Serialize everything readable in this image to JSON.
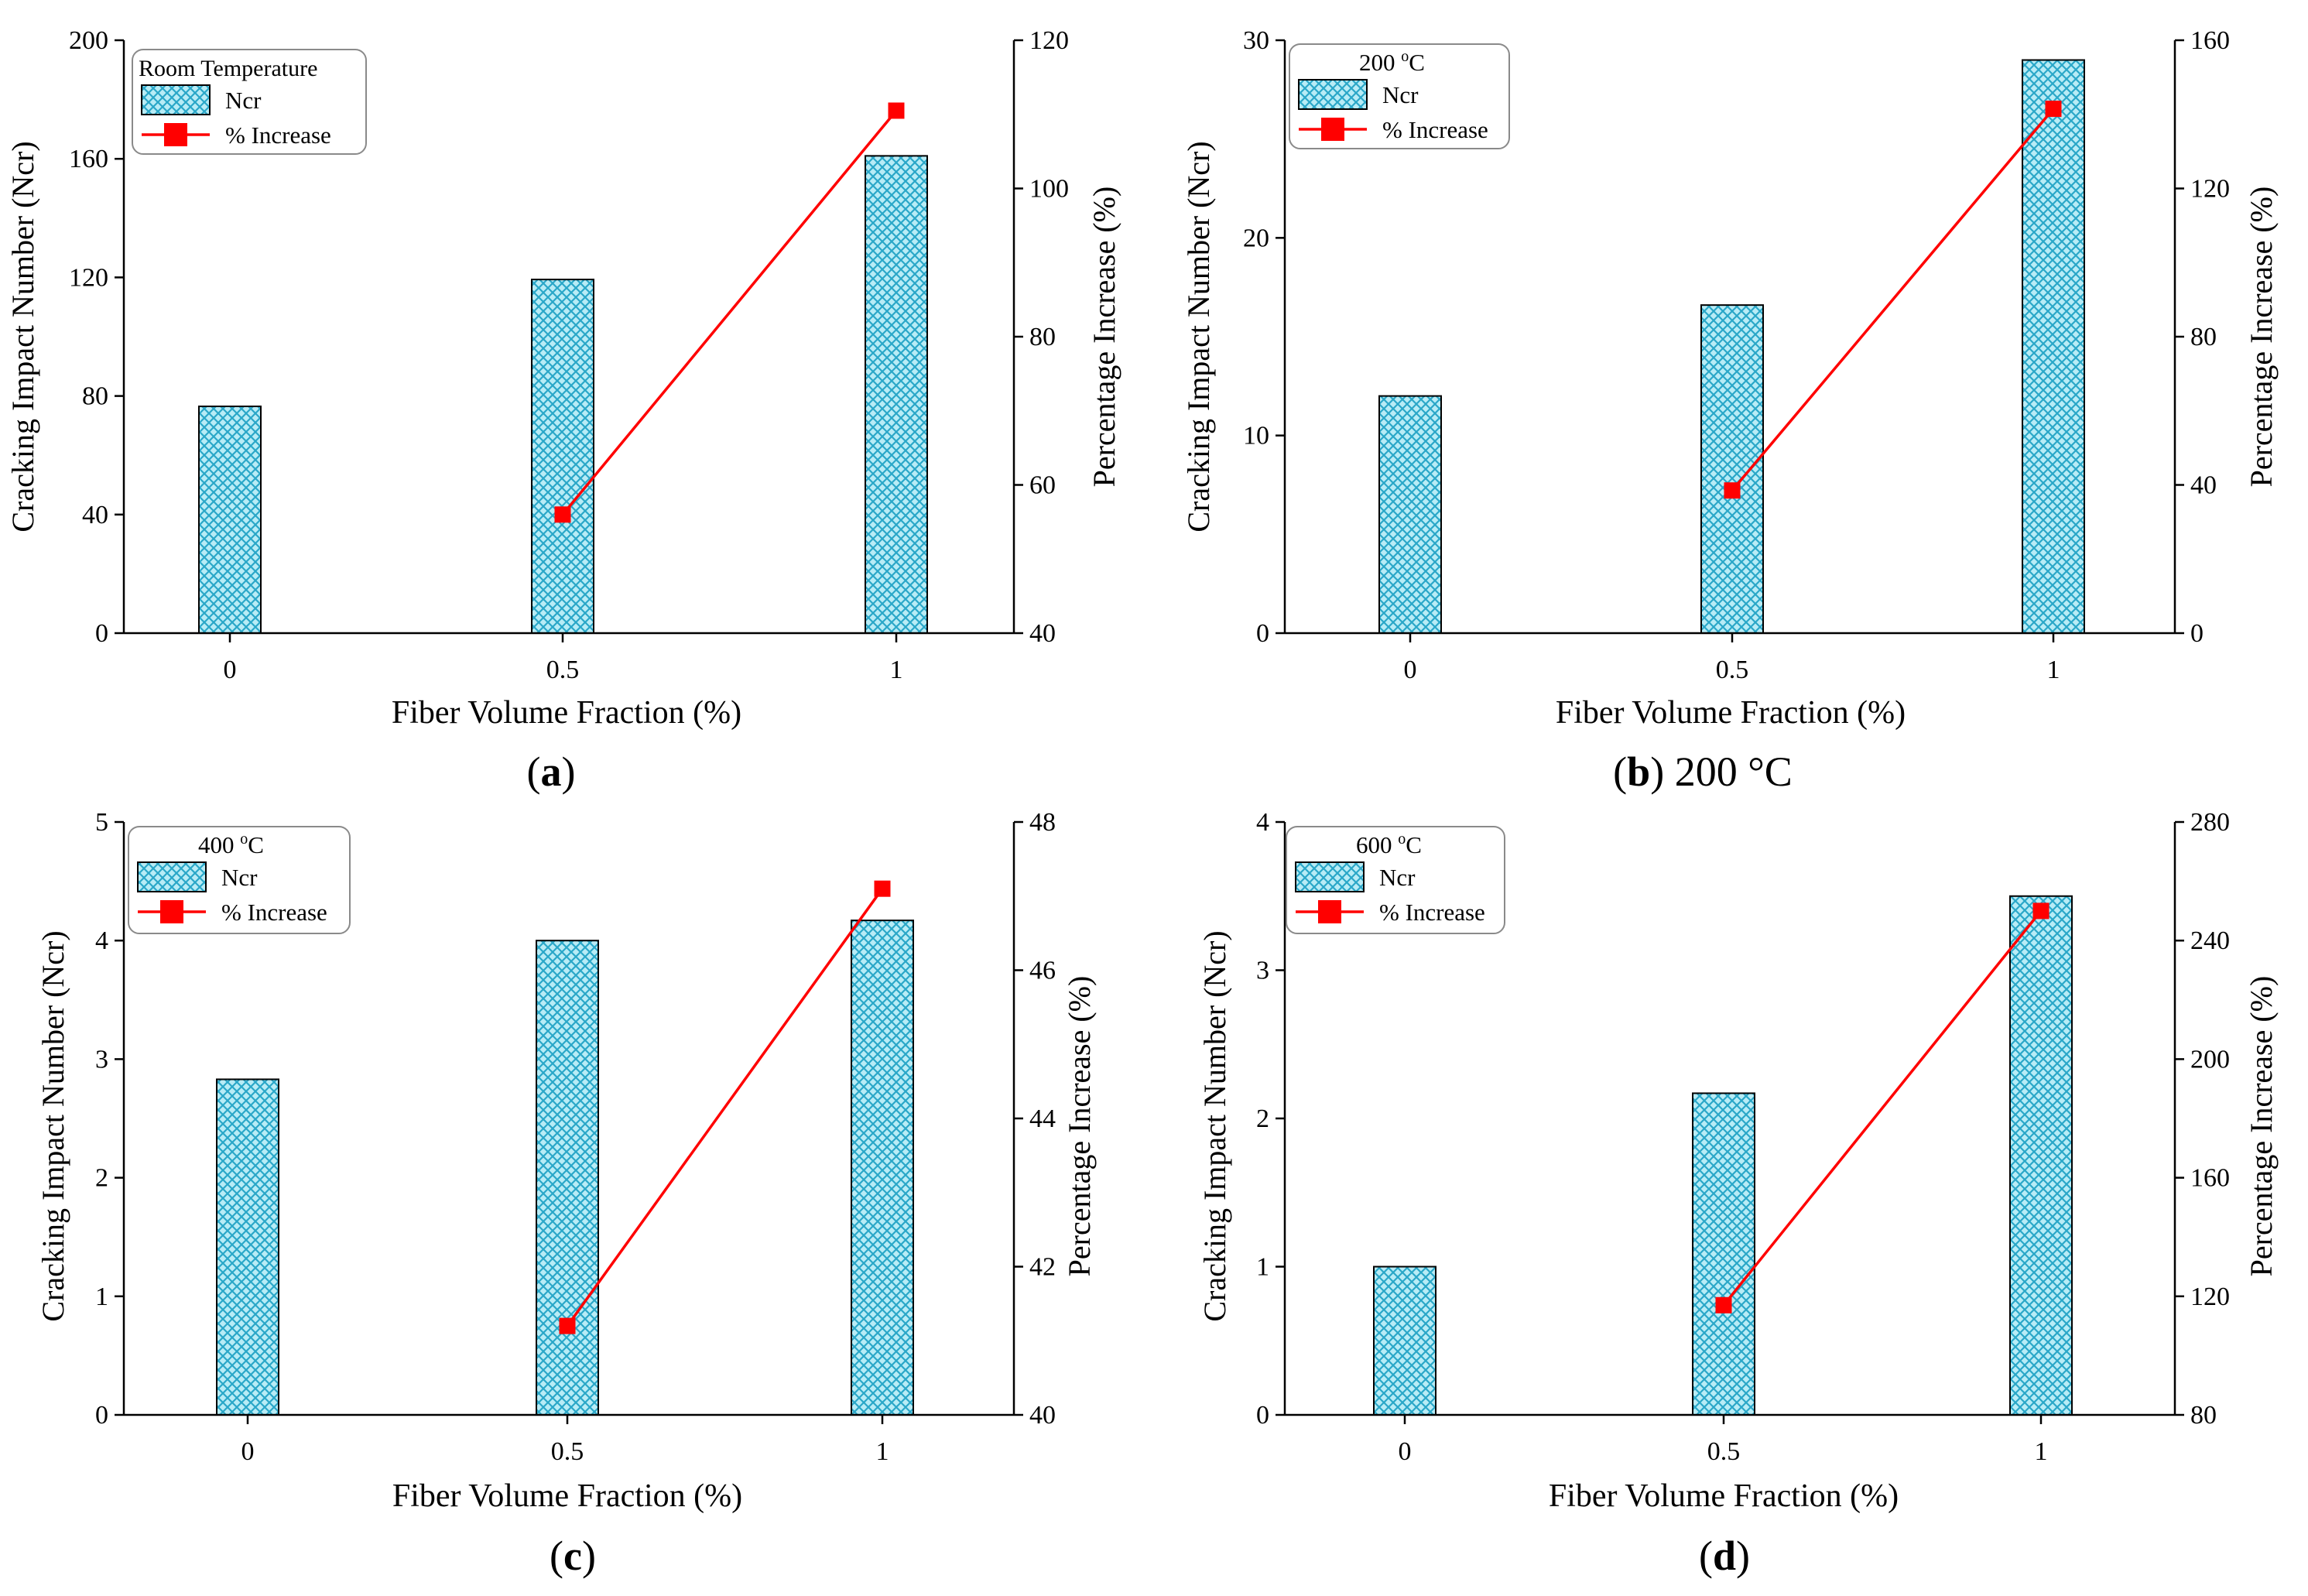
{
  "figure": {
    "panels": [
      {
        "caption_letter": "a",
        "caption_rest": "",
        "legend_title": "Room Temperature",
        "legend_title_sup": "",
        "legend_title_unit": "",
        "legend_bar_label": "Ncr",
        "legend_line_label": "% Increase",
        "ylabel_left": "Cracking Impact Number (Ncr)",
        "ylabel_right": "Percentage Increase (%)",
        "xlabel": "Fiber Volume Fraction (%)"
      },
      {
        "caption_letter": "b",
        "caption_rest": " 200 °C",
        "legend_title": "200 ",
        "legend_title_sup": "o",
        "legend_title_unit": "C",
        "legend_bar_label": "Ncr",
        "legend_line_label": "% Increase",
        "ylabel_left": "Cracking Impact Number (Ncr)",
        "ylabel_right": "Percentage Increase (%)",
        "xlabel": "Fiber Volume Fraction (%)"
      },
      {
        "caption_letter": "c",
        "caption_rest": "",
        "legend_title": "400 ",
        "legend_title_sup": "o",
        "legend_title_unit": "C",
        "legend_bar_label": "Ncr",
        "legend_line_label": "% Increase",
        "ylabel_left": "Cracking Impact Number (Ncr)",
        "ylabel_right": "Percentage Increase (%)",
        "xlabel": "Fiber Volume Fraction (%)"
      },
      {
        "caption_letter": "d",
        "caption_rest": "",
        "legend_title": "600 ",
        "legend_title_sup": "o",
        "legend_title_unit": "C",
        "legend_bar_label": "Ncr",
        "legend_line_label": "% Increase",
        "ylabel_left": "Cracking Impact Number (Ncr)",
        "ylabel_right": "Percentage Increase (%)",
        "xlabel": "Fiber Volume Fraction (%)"
      }
    ]
  },
  "colors": {
    "bar_fill": "#b8ecf6",
    "bar_pattern": "#2aa7c8",
    "bar_stroke": "#000000",
    "line": "#ff0000",
    "marker": "#ff0000"
  },
  "chart_data": [
    {
      "type": "bar",
      "legend_title": "Room Temperature",
      "categories": [
        "0",
        "0.5",
        "1"
      ],
      "series": [
        {
          "name": "Ncr",
          "axis": "left",
          "values": [
            76.5,
            119.3,
            161
          ]
        },
        {
          "name": "% Increase",
          "axis": "right",
          "type": "line",
          "x": [
            "0.5",
            "1"
          ],
          "values": [
            56,
            110.5
          ]
        }
      ],
      "xlabel": "Fiber Volume Fraction (%)",
      "ylabel": "Cracking Impact Number (Ncr)",
      "y2label": "Percentage Increase (%)",
      "ylim": [
        0,
        200
      ],
      "yticks": [
        0,
        40,
        80,
        120,
        160,
        200
      ],
      "y2lim": [
        40,
        120
      ],
      "y2ticks": [
        40,
        60,
        80,
        100,
        120
      ],
      "legend": "top-left",
      "grid": false
    },
    {
      "type": "bar",
      "legend_title": "200 oC",
      "categories": [
        "0",
        "0.5",
        "1"
      ],
      "series": [
        {
          "name": "Ncr",
          "axis": "left",
          "values": [
            12,
            16.6,
            29
          ]
        },
        {
          "name": "% Increase",
          "axis": "right",
          "type": "line",
          "x": [
            "0.5",
            "1"
          ],
          "values": [
            38.5,
            141.5
          ]
        }
      ],
      "xlabel": "Fiber Volume Fraction (%)",
      "ylabel": "Cracking Impact Number (Ncr)",
      "y2label": "Percentage Increase (%)",
      "ylim": [
        0,
        30
      ],
      "yticks": [
        0,
        10,
        20,
        30
      ],
      "y2lim": [
        0,
        160
      ],
      "y2ticks": [
        0,
        40,
        80,
        120,
        160
      ],
      "legend": "top-left",
      "grid": false
    },
    {
      "type": "bar",
      "legend_title": "400 oC",
      "categories": [
        "0",
        "0.5",
        "1"
      ],
      "series": [
        {
          "name": "Ncr",
          "axis": "left",
          "values": [
            2.83,
            4.0,
            4.17
          ]
        },
        {
          "name": "% Increase",
          "axis": "right",
          "type": "line",
          "x": [
            "0.5",
            "1"
          ],
          "values": [
            41.2,
            47.1
          ]
        }
      ],
      "xlabel": "Fiber Volume Fraction (%)",
      "ylabel": "Cracking Impact Number (Ncr)",
      "y2label": "Percentage Increase (%)",
      "ylim": [
        0,
        5
      ],
      "yticks": [
        0,
        1,
        2,
        3,
        4,
        5
      ],
      "y2lim": [
        40,
        48
      ],
      "y2ticks": [
        40,
        42,
        44,
        46,
        48
      ],
      "legend": "top-left",
      "grid": false
    },
    {
      "type": "bar",
      "legend_title": "600 oC",
      "categories": [
        "0",
        "0.5",
        "1"
      ],
      "series": [
        {
          "name": "Ncr",
          "axis": "left",
          "values": [
            1.0,
            2.17,
            3.5
          ]
        },
        {
          "name": "% Increase",
          "axis": "right",
          "type": "line",
          "x": [
            "0.5",
            "1"
          ],
          "values": [
            117,
            250
          ]
        }
      ],
      "xlabel": "Fiber Volume Fraction (%)",
      "ylabel": "Cracking Impact Number (Ncr)",
      "y2label": "Percentage Increase (%)",
      "ylim": [
        0,
        4
      ],
      "yticks": [
        0,
        1,
        2,
        3,
        4
      ],
      "y2lim": [
        80,
        280
      ],
      "y2ticks": [
        80,
        120,
        160,
        200,
        240,
        280
      ],
      "legend": "top-left",
      "grid": false
    }
  ]
}
